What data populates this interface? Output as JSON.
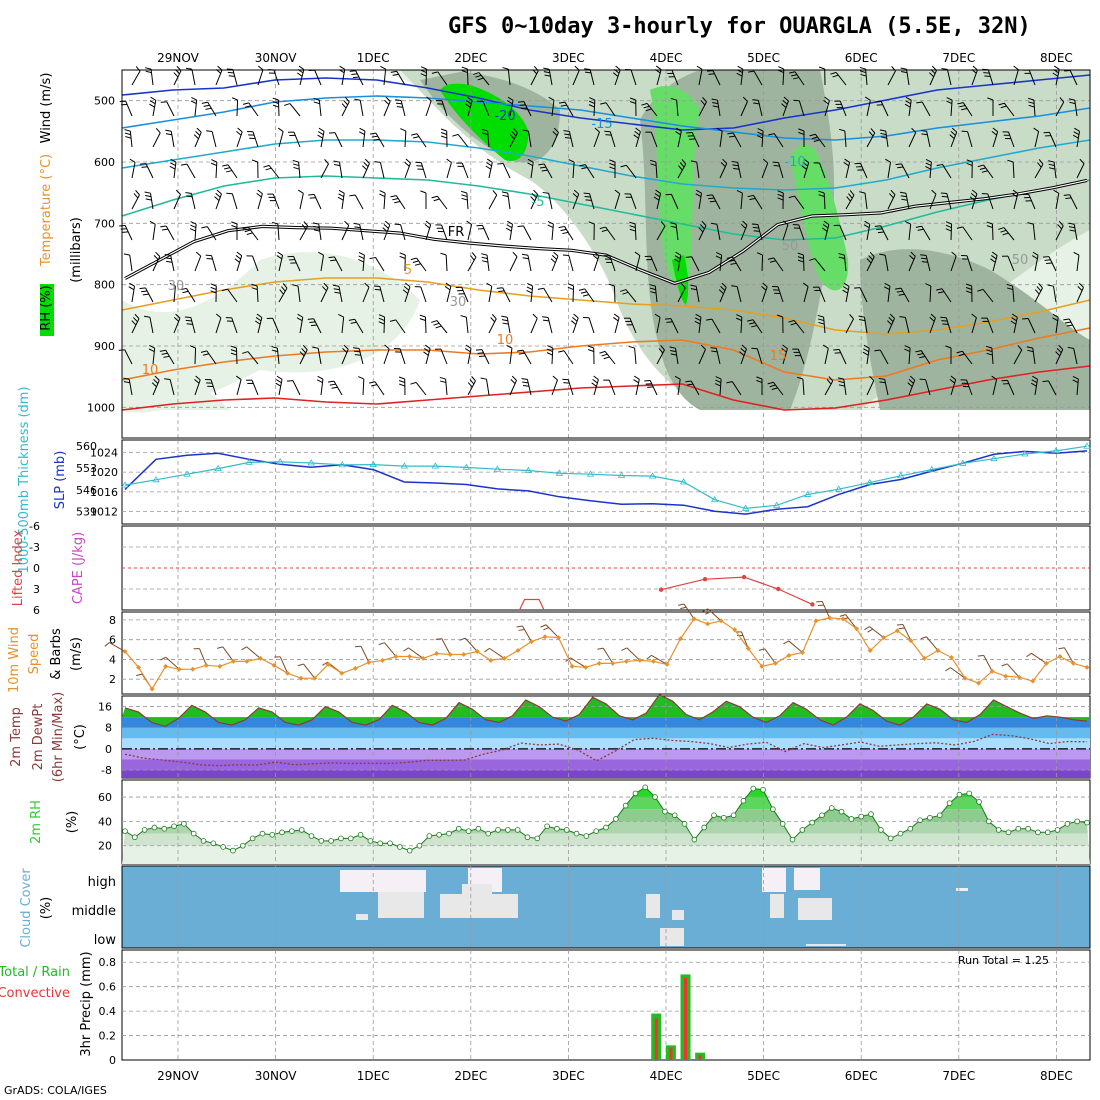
{
  "title": "GFS 0~10day 3-hourly for OUARGLA (5.5E, 32N)",
  "footer": "GrADS: COLA/IGES",
  "run_total_label": "Run Total = 1.25",
  "colors": {
    "rh_light": "#e6f2e6",
    "rh_mid": "#c8dcc8",
    "rh_dark": "#9fb49f",
    "rh_green": "#66dd66",
    "rh_bright": "#00dd00",
    "cloud_bg": "#6aaed6",
    "cloud_cell": "#e8e8e8",
    "precip_total": "#22bb22",
    "precip_conv": "#ee3333",
    "slp": "#1a33cc",
    "thickness": "#33bbcc",
    "wind": "#e6922e",
    "temp_fill_green": "#22bb22",
    "temp_fill_blue": "#3388dd",
    "rh2m": "#33cc33",
    "cape": "#cc44cc",
    "li": "#dd4444"
  },
  "chart_data": [
    {
      "panel": "upper-air",
      "type": "contour",
      "xlabels": [
        "29NOV",
        "30NOV",
        "1DEC",
        "2DEC",
        "3DEC",
        "4DEC",
        "5DEC",
        "6DEC",
        "7DEC",
        "8DEC"
      ],
      "ylabel": [
        "RH (%)",
        "Temperature (°C)",
        "Wind (m/s)",
        "(millibars)"
      ],
      "yticks": [
        500,
        600,
        700,
        800,
        900,
        1000
      ],
      "ylim": [
        1050,
        450
      ],
      "contour_labels": [
        "-20",
        "-15",
        "-10",
        "-5",
        "FR",
        "5",
        "10",
        "15",
        "10",
        "50",
        "30",
        "50",
        "30"
      ],
      "freezing_level_mb": [
        790,
        760,
        730,
        712,
        705,
        707,
        708,
        712,
        716,
        726,
        732,
        737,
        741,
        744,
        752,
        776,
        798,
        780,
        745,
        702,
        688,
        686,
        683,
        672,
        666,
        660,
        652,
        642,
        630
      ]
    },
    {
      "panel": "slp-thickness",
      "type": "line",
      "ylabel_left": "1000-500mb Thickness (dm)",
      "ylabel_right": "SLP (mb)",
      "yticks_left": [
        "539",
        "546",
        "553",
        "560"
      ],
      "yticks_right": [
        "1012",
        "1016",
        "1020",
        "1024"
      ],
      "ylim_slp": [
        1009.5,
        1026.5
      ],
      "slp": [
        1016.5,
        1022.6,
        1023.4,
        1023.8,
        1022.6,
        1021.6,
        1021.0,
        1021.5,
        1020.5,
        1018.0,
        1017.8,
        1017.5,
        1016.6,
        1016.2,
        1015.0,
        1014.2,
        1013.5,
        1013.6,
        1013.3,
        1012.1,
        1011.5,
        1012.5,
        1013.0,
        1015.5,
        1017.5,
        1018.5,
        1020.2,
        1021.8,
        1023.6,
        1024.2,
        1023.8,
        1024.3
      ],
      "thickness": [
        547.5,
        549.2,
        551.0,
        552.8,
        554.8,
        555.0,
        554.6,
        554.0,
        554.1,
        553.6,
        553.6,
        553.2,
        552.6,
        552.2,
        551.3,
        551.0,
        550.6,
        550.4,
        548.5,
        542.8,
        540.0,
        541.0,
        544.5,
        546.2,
        548.3,
        550.5,
        552.5,
        554.5,
        556.0,
        557.5,
        558.5,
        560.0
      ]
    },
    {
      "panel": "stability",
      "type": "line",
      "ylabel_left": "Lifted Index",
      "ylabel_right": "CAPE (J/kg)",
      "yticks": [
        "-6",
        "-3",
        "0",
        "3",
        "6"
      ],
      "ylim": [
        6,
        -6
      ],
      "lifted_index_x": [
        4.95,
        5.4,
        5.8,
        6.15,
        6.5
      ],
      "lifted_index": [
        3.1,
        1.6,
        1.3,
        3.0,
        5.2
      ]
    },
    {
      "panel": "wind10m",
      "type": "line",
      "ylabel": [
        "10m Wind",
        "Speed",
        "& Barbs",
        "(m/s)"
      ],
      "yticks": [
        "2",
        "4",
        "6",
        "8"
      ],
      "ylim": [
        0.5,
        8.8
      ],
      "speed": [
        4.8,
        3.2,
        1.0,
        3.3,
        3.0,
        3.0,
        3.4,
        3.3,
        3.8,
        3.8,
        4.1,
        3.4,
        2.6,
        2.1,
        2.1,
        3.5,
        2.6,
        3.1,
        3.7,
        3.9,
        4.3,
        4.3,
        4.1,
        4.6,
        4.5,
        4.5,
        4.8,
        3.9,
        4.1,
        4.9,
        5.8,
        6.3,
        6.2,
        3.3,
        3.2,
        3.6,
        3.6,
        3.8,
        3.9,
        3.8,
        3.5,
        6.1,
        8.1,
        7.6,
        7.9,
        7.0,
        5.1,
        3.3,
        3.6,
        4.4,
        4.7,
        7.9,
        8.2,
        8.1,
        7.1,
        4.9,
        6.2,
        6.9,
        5.9,
        4.1,
        4.9,
        4.2,
        2.1,
        1.6,
        2.8,
        2.3,
        2.2,
        1.8,
        3.6,
        4.3,
        3.6,
        3.2
      ]
    },
    {
      "panel": "temp2m",
      "type": "area",
      "ylabel": [
        "2m Temp",
        "2m DewPt",
        "(6hr Min/Max)",
        "(°C)"
      ],
      "yticks": [
        "-8",
        "0",
        "8",
        "16"
      ],
      "ylim": [
        -11,
        20
      ],
      "temperature": [
        15.5,
        14.0,
        10.0,
        8.5,
        11.5,
        16.5,
        14.0,
        10.0,
        9.0,
        11.0,
        15.5,
        14.0,
        10.0,
        9.0,
        11.0,
        16.0,
        14.0,
        10.0,
        9.0,
        11.0,
        16.5,
        14.0,
        10.0,
        9.0,
        11.5,
        17.5,
        15.0,
        11.0,
        10.0,
        12.5,
        18.5,
        16.0,
        12.0,
        10.5,
        13.0,
        19.5,
        17.0,
        12.5,
        11.0,
        13.5,
        20.5,
        18.0,
        13.0,
        11.0,
        14.0,
        18.0,
        16.0,
        12.0,
        10.0,
        12.5,
        17.5,
        15.0,
        11.0,
        9.0,
        12.0,
        17.0,
        14.5,
        10.5,
        9.0,
        12.0,
        17.0,
        15.0,
        11.0,
        10.0,
        13.0,
        18.5,
        16.0,
        13.5,
        11.5,
        12.5,
        12.0,
        11.0,
        10.5
      ],
      "dewpoint": [
        -2.0,
        -3.5,
        -4.2,
        -5.0,
        -6.0,
        -6.3,
        -6.0,
        -6.1,
        -5.0,
        -6.0,
        -5.6,
        -5.3,
        -5.5,
        -5.4,
        -5.5,
        -5.1,
        -4.3,
        -4.3,
        -4.2,
        -2.0,
        -0.4,
        2.2,
        1.5,
        1.8,
        -0.4,
        -4.5,
        -0.8,
        3.5,
        4.0,
        3.2,
        2.8,
        2.0,
        0.5,
        1.8,
        2.5,
        -1.0,
        2.0,
        0.5,
        1.5,
        2.6,
        1.0,
        1.5,
        2.0,
        2.3,
        1.5,
        2.8,
        5.5,
        5.0,
        3.8,
        2.0,
        2.8,
        2.7
      ]
    },
    {
      "panel": "rh2m",
      "type": "area",
      "ylabel": [
        "2m RH",
        "(%)"
      ],
      "yticks": [
        "20",
        "40",
        "60"
      ],
      "ylim": [
        5,
        74
      ],
      "rh": [
        32,
        27,
        33,
        35,
        34,
        36,
        38,
        30,
        24,
        22,
        19,
        16,
        20,
        26,
        30,
        29,
        31,
        32,
        33,
        28,
        24,
        24,
        26,
        26,
        29,
        24,
        22,
        22,
        19,
        16,
        20,
        28,
        29,
        30,
        34,
        32,
        34,
        30,
        33,
        33,
        33,
        27,
        26,
        36,
        34,
        33,
        30,
        28,
        32,
        35,
        42,
        53,
        63,
        68,
        60,
        48,
        45,
        38,
        25,
        35,
        45,
        43,
        45,
        57,
        67,
        66,
        50,
        38,
        25,
        33,
        39,
        45,
        51,
        48,
        42,
        44,
        46,
        33,
        26,
        30,
        34,
        41,
        43,
        45,
        55,
        62,
        63,
        56,
        40,
        33,
        31,
        34,
        34,
        31,
        31,
        33,
        38,
        40,
        39
      ]
    },
    {
      "panel": "cloud",
      "type": "heatmap",
      "ylabel": [
        "Cloud Cover",
        "(%)"
      ],
      "levels": [
        "high",
        "middle",
        "low"
      ]
    },
    {
      "panel": "precip",
      "type": "bar",
      "ylabel": [
        "Total / Rain",
        "Convective",
        "3hr Precip (mm)"
      ],
      "yticks": [
        "0",
        "0.2",
        "0.4",
        "0.6",
        "0.8"
      ],
      "ylim": [
        0,
        0.9
      ],
      "x": [
        4.9,
        5.05,
        5.2,
        5.35
      ],
      "total": [
        0.38,
        0.12,
        0.7,
        0.06
      ],
      "convective": [
        0.34,
        0.1,
        0.67,
        0.04
      ]
    }
  ]
}
